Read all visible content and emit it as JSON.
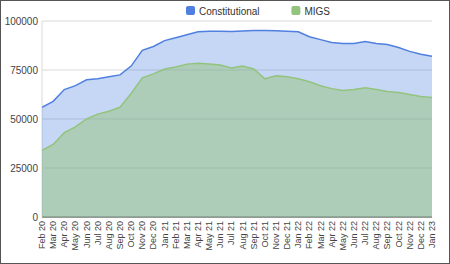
{
  "chart_data": {
    "type": "area",
    "categories": [
      "Feb 20",
      "Mar 20",
      "Apr 20",
      "May 20",
      "Jun 20",
      "Jul 20",
      "Aug 20",
      "Sep 20",
      "Oct 20",
      "Nov 20",
      "Dec 20",
      "Jan 21",
      "Feb 21",
      "Mar 21",
      "Apr 21",
      "May 21",
      "Jun 21",
      "Jul 21",
      "Aug 21",
      "Sep 21",
      "Oct 21",
      "Nov 21",
      "Dec 21",
      "Jan 22",
      "Feb 22",
      "Mar 22",
      "Apr 22",
      "May 22",
      "Jun 22",
      "Jul 22",
      "Aug 22",
      "Sep 22",
      "Oct 22",
      "Nov 22",
      "Dec 22",
      "Jan 23"
    ],
    "series": [
      {
        "name": "Constitutional",
        "color": "#4f7fe0",
        "values": [
          56000,
          59000,
          65000,
          67000,
          70000,
          70500,
          71500,
          72500,
          77000,
          85000,
          87000,
          90000,
          91500,
          93000,
          94500,
          94800,
          94800,
          94600,
          94900,
          95200,
          95200,
          95000,
          94800,
          94500,
          92000,
          90500,
          89000,
          88500,
          88500,
          89500,
          88500,
          88000,
          86500,
          84500,
          83000,
          82000
        ]
      },
      {
        "name": "MIGS",
        "color": "#93c47d",
        "values": [
          34000,
          37000,
          43000,
          46000,
          50000,
          52500,
          54000,
          56000,
          63000,
          71000,
          73000,
          75500,
          76500,
          78000,
          78500,
          78000,
          77500,
          76000,
          77000,
          75500,
          70500,
          72000,
          71500,
          70500,
          69000,
          67000,
          65500,
          64500,
          65000,
          66000,
          65000,
          64000,
          63500,
          62500,
          61500,
          61000
        ]
      }
    ],
    "ylim": [
      0,
      100000
    ],
    "yticks": [
      0,
      25000,
      50000,
      75000,
      100000
    ],
    "grid": true,
    "legend": "top",
    "stacked": false
  }
}
